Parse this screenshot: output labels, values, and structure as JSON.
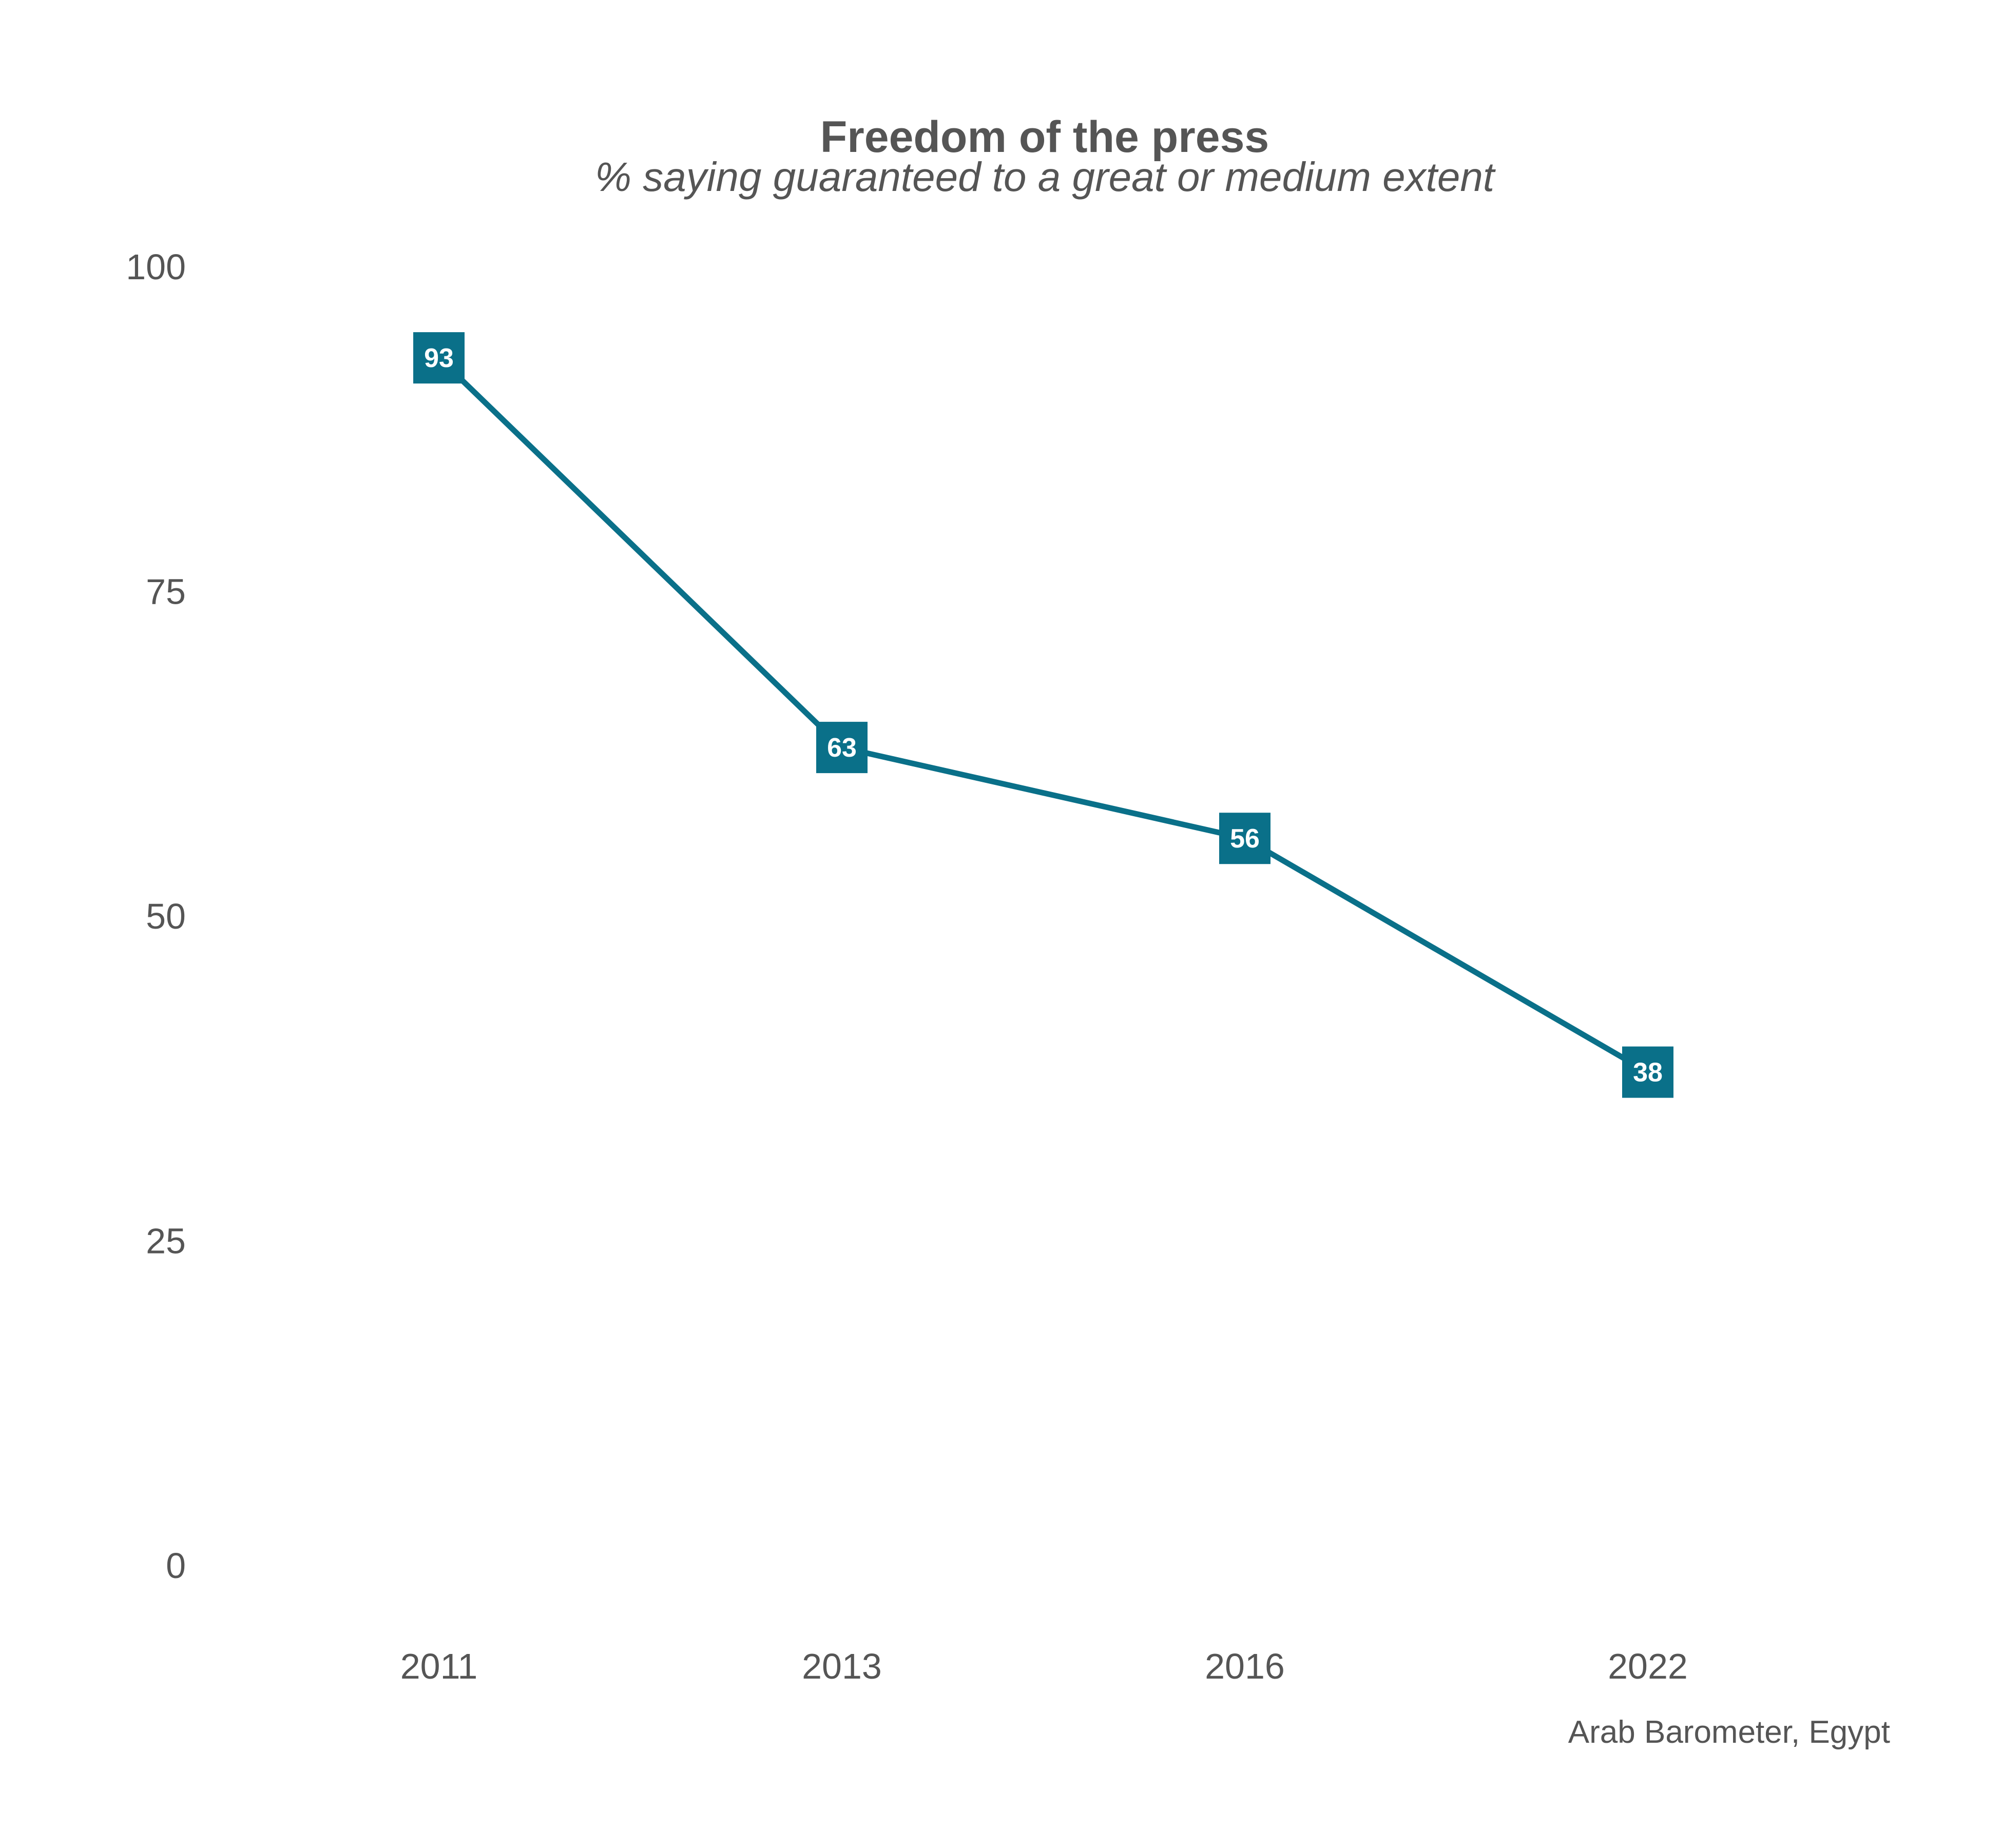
{
  "chart_data": {
    "type": "line",
    "title": "Freedom of the press",
    "subtitle": "% saying guaranteed to a great or medium extent",
    "caption": "Arab Barometer, Egypt",
    "categories": [
      "2011",
      "2013",
      "2016",
      "2022"
    ],
    "values": [
      93,
      63,
      56,
      38
    ],
    "data_labels": [
      "93",
      "63",
      "56",
      "38"
    ],
    "y_ticks": [
      "0",
      "25",
      "50",
      "75",
      "100"
    ],
    "ylim": [
      0,
      100
    ],
    "grid": false,
    "legend": "none",
    "line_color": "#0a7089"
  }
}
